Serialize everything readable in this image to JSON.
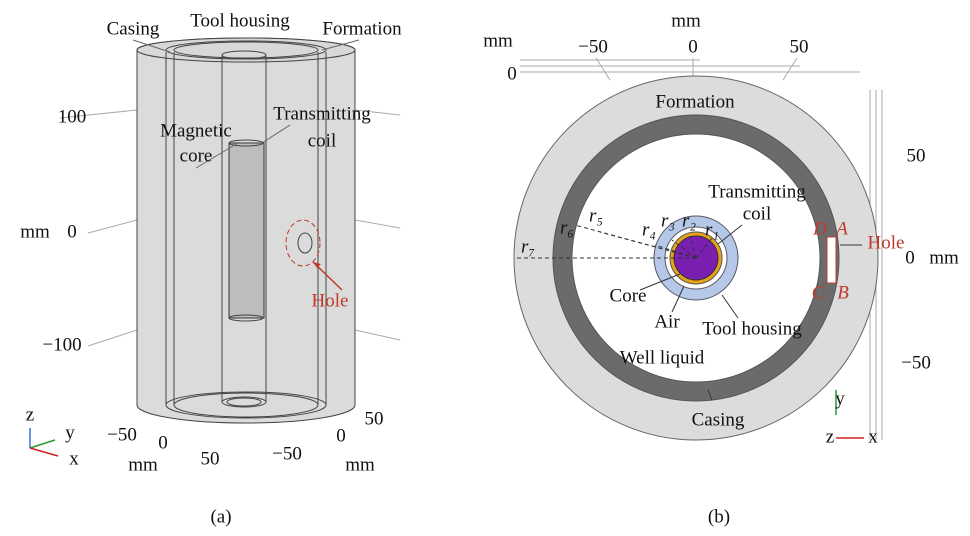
{
  "panel_a": {
    "caption": "(a)",
    "labels": {
      "casing": "Casing",
      "tool_housing": "Tool housing",
      "formation": "Formation",
      "magnetic_core": [
        "Magnetic",
        "core"
      ],
      "transmitting_coil": [
        "Transmitting",
        "coil"
      ],
      "hole": "Hole"
    },
    "z_axis": {
      "ticks": [
        "100",
        "0",
        "−100"
      ],
      "unit": "mm"
    },
    "x_axis": {
      "ticks": [
        "−50",
        "0",
        "50"
      ],
      "unit": "mm"
    },
    "y_axis": {
      "ticks": [
        "50",
        "0",
        "−50"
      ],
      "unit": "mm"
    },
    "triad": [
      "z",
      "y",
      "x"
    ]
  },
  "panel_b": {
    "caption": "(b)",
    "labels": {
      "formation": "Formation",
      "transmitting_coil": [
        "Transmitting",
        "coil"
      ],
      "core": "Core",
      "air": "Air",
      "tool_housing": "Tool housing",
      "well_liquid": "Well liquid",
      "casing": "Casing",
      "hole": "Hole"
    },
    "radii": [
      "r₁",
      "r₂",
      "r₃",
      "r₄",
      "r₅",
      "r₆",
      "r₇"
    ],
    "points": [
      "D",
      "A",
      "C",
      "B"
    ],
    "x_axis": {
      "ticks": [
        "−50",
        "0",
        "50"
      ],
      "unit": "mm"
    },
    "y_axis": {
      "ticks": [
        "50",
        "0",
        "−50"
      ],
      "unit": "mm"
    },
    "z_axis": {
      "ticks": [
        "0"
      ],
      "unit": "mm"
    },
    "triad": [
      "y",
      "z",
      "x"
    ]
  }
}
